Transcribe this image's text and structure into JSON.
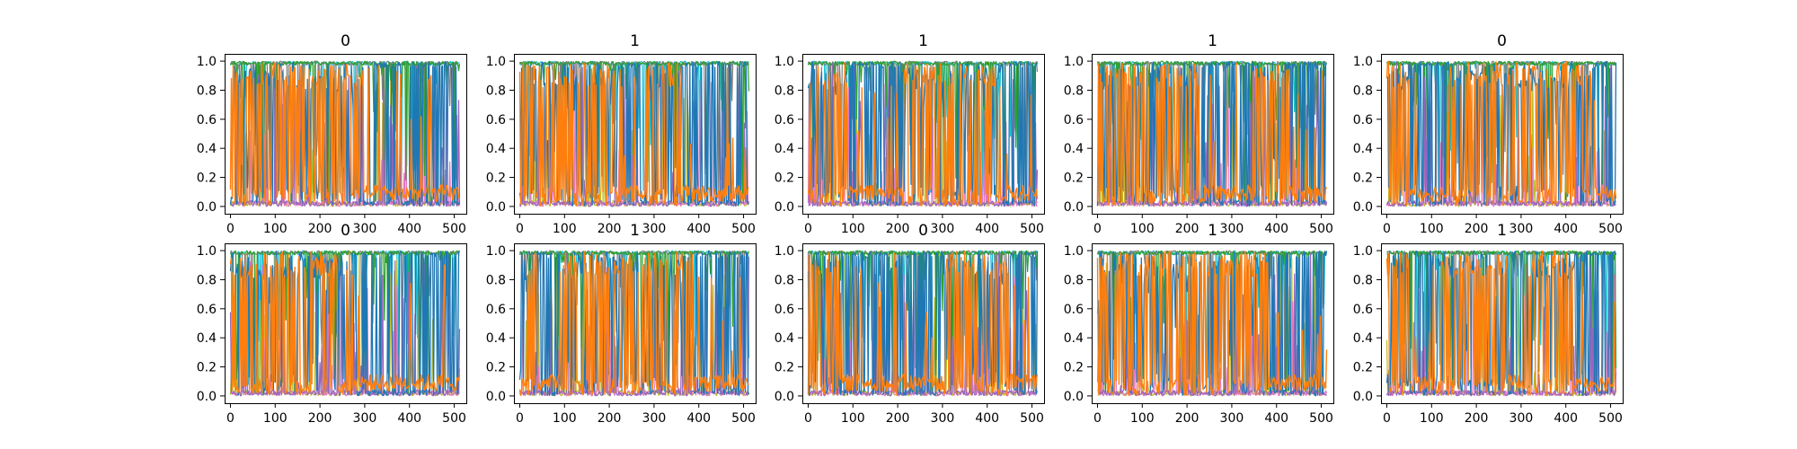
{
  "chart_data": {
    "type": "line",
    "grid": false,
    "layout": {
      "rows": 2,
      "cols": 5
    },
    "xlim": [
      -13,
      527
    ],
    "ylim": [
      -0.05,
      1.05
    ],
    "xticks": [
      0,
      100,
      200,
      300,
      400,
      500
    ],
    "xtick_labels": [
      "0",
      "100",
      "200",
      "300",
      "400",
      "500"
    ],
    "yticks": [
      0.0,
      0.2,
      0.4,
      0.6,
      0.8,
      1.0
    ],
    "ytick_labels": [
      "0.0",
      "0.2",
      "0.4",
      "0.6",
      "0.8",
      "1.0"
    ],
    "n_points": 513,
    "series_colors": [
      "#1f77b4",
      "#ff7f0e",
      "#17becf",
      "#bcbd22",
      "#7f7f7f",
      "#e377c2",
      "#2ca02c",
      "#9467bd"
    ],
    "subplots": [
      {
        "title": "0",
        "dominant": [
          {
            "x": [
              0,
              300
            ],
            "color": "orange"
          },
          {
            "x": [
              300,
              513
            ],
            "color": "blue"
          }
        ]
      },
      {
        "title": "1",
        "dominant": [
          {
            "x": [
              0,
              230
            ],
            "color": "orange"
          },
          {
            "x": [
              230,
              280
            ],
            "color": "blue"
          },
          {
            "x": [
              280,
              360
            ],
            "color": "orange"
          },
          {
            "x": [
              360,
              513
            ],
            "color": "blue"
          }
        ]
      },
      {
        "title": "1",
        "dominant": [
          {
            "x": [
              0,
              90
            ],
            "color": "orange"
          },
          {
            "x": [
              90,
              210
            ],
            "color": "blue"
          },
          {
            "x": [
              210,
              430
            ],
            "color": "orange"
          },
          {
            "x": [
              430,
              513
            ],
            "color": "blue"
          }
        ]
      },
      {
        "title": "1",
        "dominant": [
          {
            "x": [
              0,
              230
            ],
            "color": "orange"
          },
          {
            "x": [
              230,
              350
            ],
            "color": "blue"
          },
          {
            "x": [
              350,
              420
            ],
            "color": "orange"
          },
          {
            "x": [
              420,
              513
            ],
            "color": "blue"
          }
        ]
      },
      {
        "title": "0",
        "dominant": [
          {
            "x": [
              0,
              50
            ],
            "color": "orange"
          },
          {
            "x": [
              50,
              140
            ],
            "color": "blue"
          },
          {
            "x": [
              140,
              460
            ],
            "color": "orange"
          },
          {
            "x": [
              460,
              513
            ],
            "color": "blue"
          }
        ]
      },
      {
        "title": "0",
        "dominant": [
          {
            "x": [
              0,
              270
            ],
            "color": "orange"
          },
          {
            "x": [
              270,
              513
            ],
            "color": "blue"
          }
        ]
      },
      {
        "title": "1",
        "dominant": [
          {
            "x": [
              0,
              40
            ],
            "color": "orange"
          },
          {
            "x": [
              40,
              90
            ],
            "color": "blue"
          },
          {
            "x": [
              90,
              390
            ],
            "color": "orange"
          },
          {
            "x": [
              390,
              513
            ],
            "color": "blue"
          }
        ]
      },
      {
        "title": "0",
        "dominant": [
          {
            "x": [
              0,
              70
            ],
            "color": "orange"
          },
          {
            "x": [
              70,
              180
            ],
            "color": "blue"
          },
          {
            "x": [
              180,
              200
            ],
            "color": "orange"
          },
          {
            "x": [
              200,
              300
            ],
            "color": "blue"
          },
          {
            "x": [
              300,
              450
            ],
            "color": "orange"
          },
          {
            "x": [
              450,
              513
            ],
            "color": "blue"
          }
        ]
      },
      {
        "title": "1",
        "dominant": [
          {
            "x": [
              0,
              380
            ],
            "color": "orange"
          },
          {
            "x": [
              380,
              513
            ],
            "color": "blue"
          }
        ]
      },
      {
        "title": "1",
        "dominant": [
          {
            "x": [
              0,
              50
            ],
            "color": "orange"
          },
          {
            "x": [
              50,
              110
            ],
            "color": "blue"
          },
          {
            "x": [
              110,
              270
            ],
            "color": "orange"
          },
          {
            "x": [
              270,
              310
            ],
            "color": "blue"
          },
          {
            "x": [
              310,
              420
            ],
            "color": "orange"
          },
          {
            "x": [
              420,
              513
            ],
            "color": "blue"
          }
        ]
      }
    ]
  }
}
